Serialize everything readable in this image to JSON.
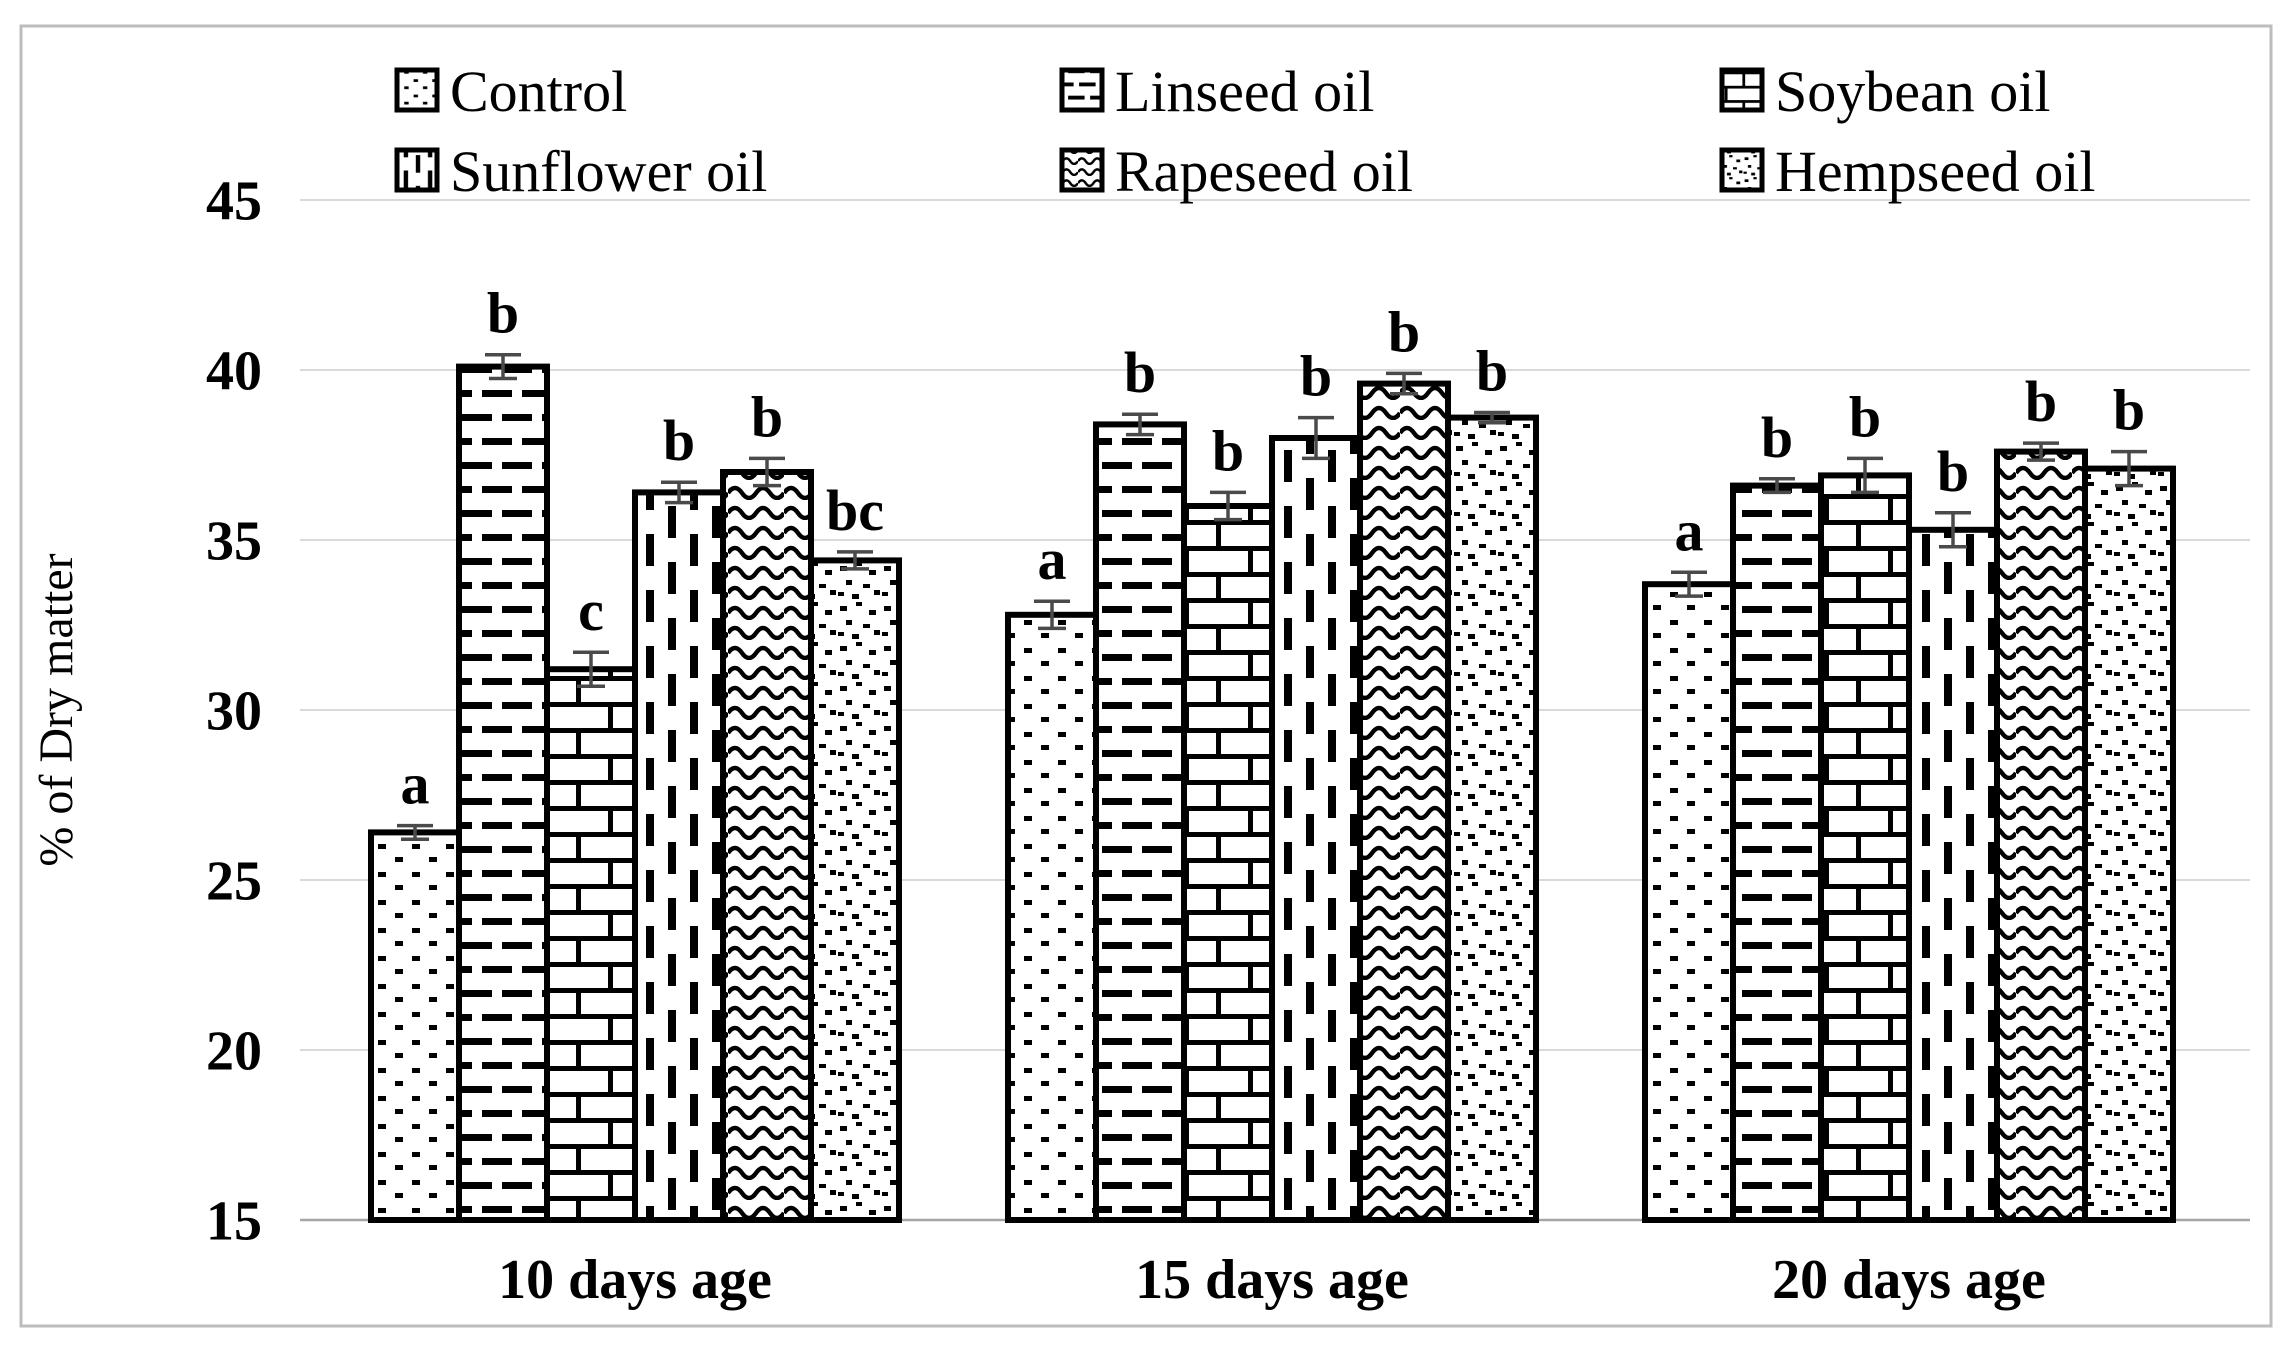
{
  "figure": {
    "background": "#ffffff",
    "frame_color": "#bdbdbd"
  },
  "chart_data": {
    "type": "bar",
    "title": "",
    "ylabel": "% of Dry matter",
    "xlabel": "",
    "ylim": [
      15,
      45
    ],
    "yticks": [
      45,
      40,
      35,
      30,
      25,
      20,
      15
    ],
    "grid": true,
    "legend_position": "top",
    "bar_outline_color": "#000000",
    "gridline_color": "#d9d9d9",
    "axis_line_color": "#a6a6a6",
    "error_bar_color": "#4a4a4a",
    "categories": [
      "10 days age",
      "15 days age",
      "20 days age"
    ],
    "series": [
      {
        "name": "Control",
        "pattern": "dots",
        "values": [
          26.4,
          32.8,
          33.7
        ],
        "errors": [
          0.2,
          0.4,
          0.35
        ],
        "letters": [
          "a",
          "a",
          "a"
        ]
      },
      {
        "name": "Linseed oil",
        "pattern": "hdash",
        "values": [
          40.1,
          38.4,
          36.6
        ],
        "errors": [
          0.35,
          0.3,
          0.2
        ],
        "letters": [
          "b",
          "b",
          "b"
        ]
      },
      {
        "name": "Soybean oil",
        "pattern": "brick",
        "values": [
          31.2,
          36.0,
          36.9
        ],
        "errors": [
          0.5,
          0.4,
          0.5
        ],
        "letters": [
          "c",
          "b",
          "b"
        ]
      },
      {
        "name": "Sunflower oil",
        "pattern": "vdash",
        "values": [
          36.4,
          38.0,
          35.3
        ],
        "errors": [
          0.3,
          0.6,
          0.5
        ],
        "letters": [
          "b",
          "b",
          "b"
        ]
      },
      {
        "name": "Rapeseed oil",
        "pattern": "waves",
        "values": [
          37.0,
          39.6,
          37.6
        ],
        "errors": [
          0.4,
          0.3,
          0.25
        ],
        "letters": [
          "b",
          "b",
          "b"
        ]
      },
      {
        "name": "Hempseed oil",
        "pattern": "speckle",
        "values": [
          34.4,
          38.6,
          37.1
        ],
        "errors": [
          0.25,
          0.15,
          0.5
        ],
        "letters": [
          "bc",
          "b",
          "b"
        ]
      }
    ]
  }
}
